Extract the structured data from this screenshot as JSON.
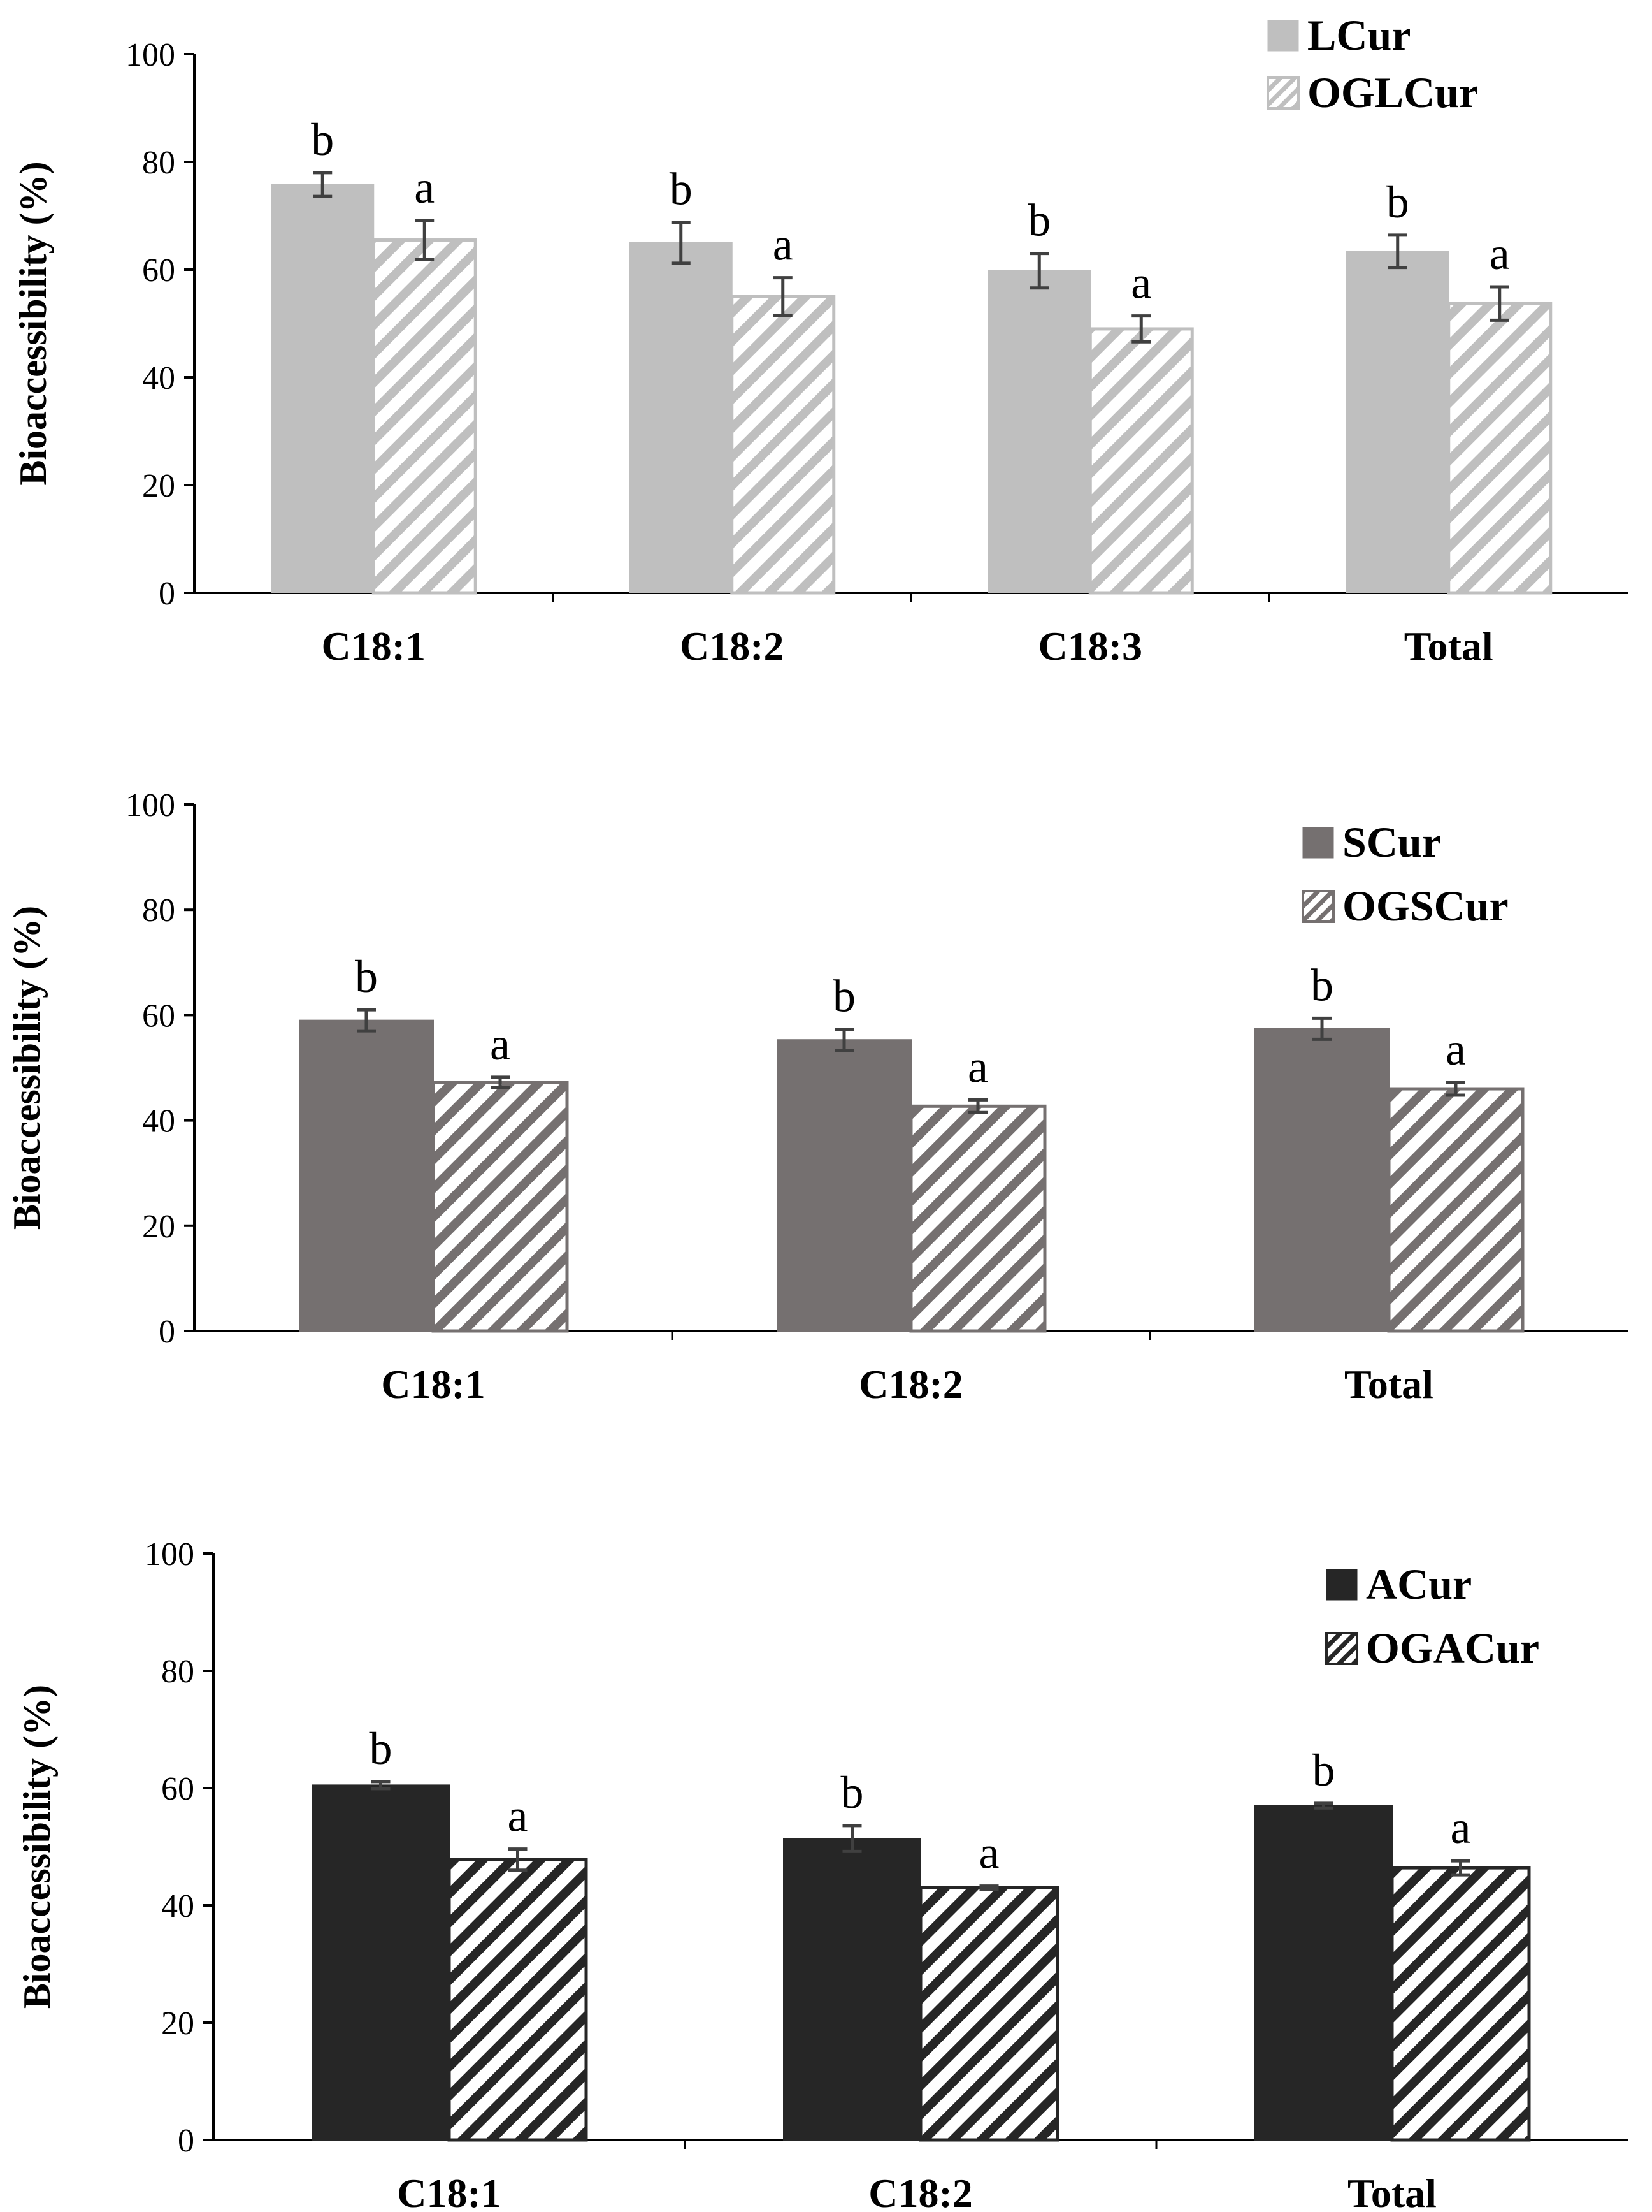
{
  "chart_data": [
    {
      "type": "bar",
      "categories": [
        "C18:1",
        "C18:2",
        "C18:3",
        "Total"
      ],
      "ylabel": "Bioaccessibility (%)",
      "ylim": [
        0,
        100
      ],
      "yticks": [
        0,
        20,
        40,
        60,
        80,
        100
      ],
      "grid": false,
      "legend_position": "top-right",
      "series": [
        {
          "name": "LCur",
          "pattern": "solid",
          "color": "#bfbfbf",
          "stroke": "#bfbfbf",
          "values": [
            75.8,
            65.0,
            59.8,
            63.4
          ],
          "errors": [
            2.2,
            3.8,
            3.2,
            3.0
          ],
          "labels": [
            "b",
            "b",
            "b",
            "b"
          ]
        },
        {
          "name": "OGLCur",
          "pattern": "hatch",
          "color": "#bfbfbf",
          "stroke": "#bfbfbf",
          "values": [
            65.5,
            55.0,
            49.0,
            53.7
          ],
          "errors": [
            3.6,
            3.5,
            2.4,
            3.1
          ],
          "labels": [
            "a",
            "a",
            "a",
            "a"
          ]
        }
      ]
    },
    {
      "type": "bar",
      "categories": [
        "C18:1",
        "C18:2",
        "Total"
      ],
      "ylabel": "Bioaccessibility (%)",
      "ylim": [
        0,
        100
      ],
      "yticks": [
        0,
        20,
        40,
        60,
        80,
        100
      ],
      "grid": false,
      "legend_position": "top-right",
      "series": [
        {
          "name": "SCur",
          "pattern": "solid",
          "color": "#757070",
          "stroke": "#757070",
          "values": [
            59.0,
            55.3,
            57.4
          ],
          "errors": [
            2.0,
            2.0,
            2.0
          ],
          "labels": [
            "b",
            "b",
            "b"
          ]
        },
        {
          "name": "OGSCur",
          "pattern": "hatch",
          "color": "#757070",
          "stroke": "#757070",
          "values": [
            47.2,
            42.7,
            46.0
          ],
          "errors": [
            1.0,
            1.2,
            1.2
          ],
          "labels": [
            "a",
            "a",
            "a"
          ]
        }
      ]
    },
    {
      "type": "bar",
      "categories": [
        "C18:1",
        "C18:2",
        "Total"
      ],
      "ylabel": "Bioaccessibility (%)",
      "ylim": [
        0,
        100
      ],
      "yticks": [
        0,
        20,
        40,
        60,
        80,
        100
      ],
      "grid": false,
      "legend_position": "top-right",
      "series": [
        {
          "name": "ACur",
          "pattern": "solid",
          "color": "#262626",
          "stroke": "#262626",
          "values": [
            60.5,
            51.4,
            57.0
          ],
          "errors": [
            0.6,
            2.2,
            0.4
          ],
          "labels": [
            "b",
            "b",
            "b"
          ]
        },
        {
          "name": "OGACur",
          "pattern": "hatch",
          "color": "#262626",
          "stroke": "#262626",
          "values": [
            47.8,
            43.0,
            46.4
          ],
          "errors": [
            1.8,
            0.3,
            1.2
          ],
          "labels": [
            "a",
            "a",
            "a"
          ]
        }
      ]
    }
  ]
}
